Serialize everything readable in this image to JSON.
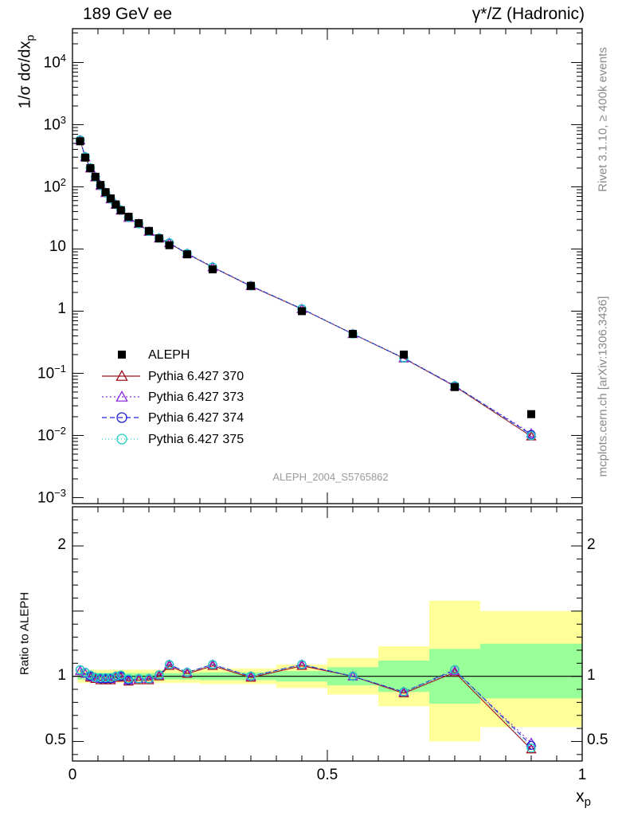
{
  "header": {
    "left": "189 GeV ee",
    "right": "γ*/Z (Hadronic)"
  },
  "side_text": {
    "rivet": "Rivet 3.1.10, ≥ 400k events",
    "mcplots": "mcplots.cern.ch [arXiv:1306.3436]"
  },
  "watermark": "ALEPH_2004_S5765862",
  "labels": {
    "ylabel_main": "1/σ dσ/dx",
    "ylabel_main_sub": "p",
    "ylabel_ratio": "Ratio to ALEPH",
    "xlabel": "x",
    "xlabel_sub": "p"
  },
  "colors": {
    "data": "#000000",
    "p370": "#a01020",
    "p373": "#8a2be2",
    "p374": "#2020d0",
    "p375": "#20d0c0",
    "band_inner": "#99ff99",
    "band_outer": "#ffff99"
  },
  "chart_data": {
    "type": "scatter",
    "x_axis": {
      "range": [
        0,
        1
      ],
      "ticks": [
        {
          "value": 0,
          "label": "0"
        },
        {
          "value": 0.5,
          "label": "0.5"
        },
        {
          "value": 1,
          "label": "1"
        }
      ]
    },
    "main_panel": {
      "y_scale": "log",
      "y_range": [
        0.0008,
        35000
      ],
      "y_ticks": [
        {
          "value": 10000,
          "base": "10",
          "exp": "4"
        },
        {
          "value": 1000,
          "base": "10",
          "exp": "3"
        },
        {
          "value": 100,
          "base": "10",
          "exp": "2"
        },
        {
          "value": 10,
          "base": "10",
          "exp": ""
        },
        {
          "value": 1,
          "base": "1",
          "exp": ""
        },
        {
          "value": 0.1,
          "base": "10",
          "exp": "−1"
        },
        {
          "value": 0.01,
          "base": "10",
          "exp": "−2"
        },
        {
          "value": 0.001,
          "base": "10",
          "exp": "−3"
        }
      ]
    },
    "ratio_panel": {
      "y_range": [
        0.35,
        2.3
      ],
      "y_ticks": [
        {
          "value": 0.5,
          "label": "0.5"
        },
        {
          "value": 1,
          "label": "1"
        },
        {
          "value": 2,
          "label": "2"
        }
      ]
    },
    "x": [
      0.015,
      0.025,
      0.035,
      0.045,
      0.055,
      0.065,
      0.075,
      0.085,
      0.095,
      0.11,
      0.13,
      0.15,
      0.17,
      0.19,
      0.225,
      0.275,
      0.35,
      0.45,
      0.55,
      0.65,
      0.75,
      0.9
    ],
    "bins": [
      [
        0.01,
        0.02
      ],
      [
        0.02,
        0.03
      ],
      [
        0.03,
        0.04
      ],
      [
        0.04,
        0.05
      ],
      [
        0.05,
        0.06
      ],
      [
        0.06,
        0.07
      ],
      [
        0.07,
        0.08
      ],
      [
        0.08,
        0.09
      ],
      [
        0.09,
        0.1
      ],
      [
        0.1,
        0.12
      ],
      [
        0.12,
        0.14
      ],
      [
        0.14,
        0.16
      ],
      [
        0.16,
        0.18
      ],
      [
        0.18,
        0.2
      ],
      [
        0.2,
        0.25
      ],
      [
        0.25,
        0.3
      ],
      [
        0.3,
        0.4
      ],
      [
        0.4,
        0.5
      ],
      [
        0.5,
        0.6
      ],
      [
        0.6,
        0.7
      ],
      [
        0.7,
        0.8
      ],
      [
        0.8,
        1.0
      ]
    ],
    "series": [
      {
        "name": "ALEPH",
        "key": "data",
        "marker": "square",
        "values": [
          540,
          295,
          200,
          145,
          107,
          82,
          65,
          52,
          42,
          33,
          26,
          19.5,
          14.8,
          11.5,
          8.2,
          4.7,
          2.55,
          1.0,
          0.43,
          0.2,
          0.06,
          0.022
        ]
      },
      {
        "name": "Pythia 6.427 370",
        "key": "p370",
        "marker": "triangle",
        "dash": "",
        "ratio": [
          1.04,
          1.02,
          0.99,
          0.98,
          0.97,
          0.97,
          0.97,
          0.99,
          0.99,
          0.96,
          0.97,
          0.97,
          1.0,
          1.08,
          1.02,
          1.08,
          0.99,
          1.08,
          1.0,
          0.87,
          1.03,
          0.44
        ]
      },
      {
        "name": "Pythia 6.427 373",
        "key": "p373",
        "marker": "triangle",
        "dash": "2,3",
        "ratio": [
          1.04,
          1.02,
          1.0,
          0.99,
          0.98,
          0.98,
          0.98,
          1.0,
          1.0,
          0.97,
          0.98,
          0.98,
          1.01,
          1.09,
          1.03,
          1.09,
          1.0,
          1.09,
          1.0,
          0.88,
          1.04,
          0.49
        ]
      },
      {
        "name": "Pythia 6.427 374",
        "key": "p374",
        "marker": "circle",
        "dash": "6,4",
        "ratio": [
          1.05,
          1.03,
          1.0,
          0.99,
          0.98,
          0.98,
          0.98,
          1.0,
          1.0,
          0.97,
          0.98,
          0.98,
          1.01,
          1.09,
          1.03,
          1.09,
          1.0,
          1.09,
          1.0,
          0.88,
          1.05,
          0.47
        ]
      },
      {
        "name": "Pythia 6.427 375",
        "key": "p375",
        "marker": "circle",
        "dash": "1,3",
        "ratio": [
          1.05,
          1.03,
          1.01,
          0.99,
          0.99,
          0.99,
          0.99,
          1.0,
          1.01,
          0.98,
          0.98,
          0.98,
          1.01,
          1.09,
          1.03,
          1.09,
          1.0,
          1.09,
          1.0,
          0.88,
          1.05,
          0.45
        ]
      }
    ],
    "ratio_bands": {
      "inner": [
        [
          0.975,
          1.025
        ],
        [
          0.975,
          1.025
        ],
        [
          0.975,
          1.025
        ],
        [
          0.975,
          1.025
        ],
        [
          0.975,
          1.025
        ],
        [
          0.975,
          1.025
        ],
        [
          0.975,
          1.025
        ],
        [
          0.975,
          1.025
        ],
        [
          0.975,
          1.025
        ],
        [
          0.975,
          1.025
        ],
        [
          0.975,
          1.025
        ],
        [
          0.975,
          1.025
        ],
        [
          0.975,
          1.025
        ],
        [
          0.975,
          1.025
        ],
        [
          0.975,
          1.025
        ],
        [
          0.97,
          1.03
        ],
        [
          0.97,
          1.03
        ],
        [
          0.96,
          1.04
        ],
        [
          0.93,
          1.07
        ],
        [
          0.88,
          1.12
        ],
        [
          0.79,
          1.21
        ],
        [
          0.83,
          1.25
        ]
      ],
      "outer": [
        [
          0.95,
          1.05
        ],
        [
          0.95,
          1.05
        ],
        [
          0.95,
          1.05
        ],
        [
          0.95,
          1.05
        ],
        [
          0.95,
          1.05
        ],
        [
          0.95,
          1.05
        ],
        [
          0.95,
          1.05
        ],
        [
          0.95,
          1.05
        ],
        [
          0.95,
          1.05
        ],
        [
          0.95,
          1.05
        ],
        [
          0.95,
          1.05
        ],
        [
          0.95,
          1.05
        ],
        [
          0.95,
          1.05
        ],
        [
          0.95,
          1.05
        ],
        [
          0.95,
          1.05
        ],
        [
          0.94,
          1.06
        ],
        [
          0.94,
          1.06
        ],
        [
          0.91,
          1.09
        ],
        [
          0.86,
          1.14
        ],
        [
          0.77,
          1.23
        ],
        [
          0.5,
          1.58
        ],
        [
          0.61,
          1.5
        ]
      ]
    }
  }
}
